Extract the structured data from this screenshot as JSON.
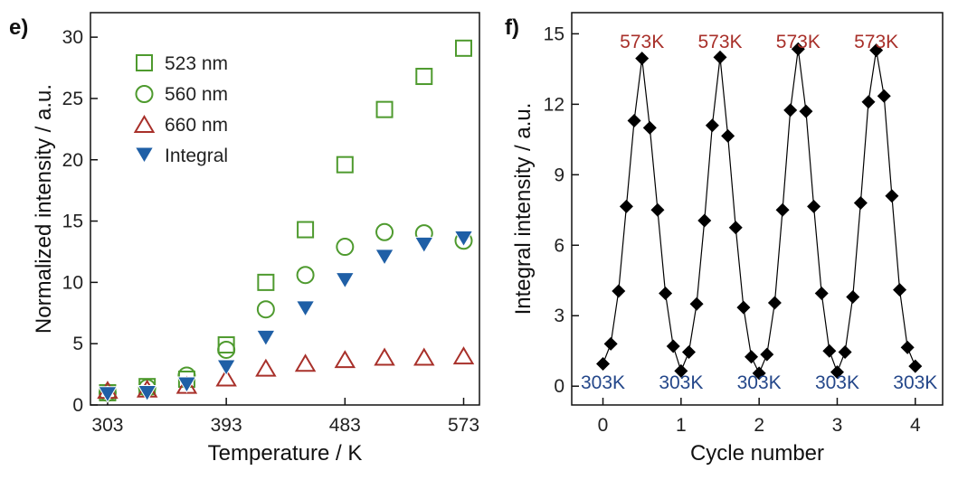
{
  "chart_data": [
    {
      "type": "scatter",
      "panel_label": "e)",
      "xlabel": "Temperature / K",
      "ylabel": "Normalized intensity / a.u.",
      "xlim": [
        290,
        585
      ],
      "ylim": [
        0,
        32
      ],
      "xticks": [
        303,
        393,
        483,
        573
      ],
      "yticks": [
        0,
        5,
        10,
        15,
        20,
        25,
        30
      ],
      "x": [
        303,
        333,
        363,
        393,
        423,
        453,
        483,
        513,
        543,
        573
      ],
      "legend_position": "top-left",
      "series": [
        {
          "name": "523 nm",
          "marker": "square",
          "color": "#4e9a2e",
          "values": [
            1.0,
            1.5,
            2.1,
            4.9,
            10.0,
            14.3,
            19.6,
            24.1,
            26.8,
            29.1
          ]
        },
        {
          "name": "560 nm",
          "marker": "circle",
          "color": "#4e9a2e",
          "values": [
            1.0,
            1.4,
            2.4,
            4.5,
            7.8,
            10.6,
            12.9,
            14.1,
            14.0,
            13.4
          ]
        },
        {
          "name": "660 nm",
          "marker": "triangle-up",
          "color": "#a8302a",
          "values": [
            1.1,
            1.2,
            1.5,
            2.1,
            2.9,
            3.3,
            3.6,
            3.8,
            3.8,
            3.9
          ]
        },
        {
          "name": "Integral",
          "marker": "triangle-down",
          "color": "#1f5fa6",
          "values": [
            0.9,
            1.0,
            1.7,
            3.1,
            5.5,
            7.9,
            10.2,
            12.1,
            13.1,
            13.6
          ]
        }
      ]
    },
    {
      "type": "line",
      "panel_label": "f)",
      "xlabel": "Cycle number",
      "ylabel": "Integral intensity / a.u.",
      "xlim": [
        -0.4,
        4.35
      ],
      "ylim": [
        -0.8,
        15.9
      ],
      "xticks": [
        0,
        1,
        2,
        3,
        4
      ],
      "yticks": [
        0,
        3,
        6,
        9,
        12,
        15
      ],
      "series": [
        {
          "name": "Integral intensity",
          "marker": "diamond",
          "color": "#000000",
          "x": [
            0.0,
            0.1,
            0.2,
            0.3,
            0.4,
            0.5,
            0.6,
            0.7,
            0.8,
            0.9,
            1.0,
            1.1,
            1.2,
            1.3,
            1.4,
            1.5,
            1.6,
            1.7,
            1.8,
            1.9,
            2.0,
            2.1,
            2.2,
            2.3,
            2.4,
            2.5,
            2.6,
            2.7,
            2.8,
            2.9,
            3.0,
            3.1,
            3.2,
            3.3,
            3.4,
            3.5,
            3.6,
            3.7,
            3.8,
            3.9,
            4.0
          ],
          "values": [
            0.95,
            1.8,
            4.05,
            7.65,
            11.3,
            13.95,
            11.0,
            7.5,
            3.95,
            1.7,
            0.65,
            1.45,
            3.5,
            7.05,
            11.1,
            14.0,
            10.65,
            6.75,
            3.35,
            1.25,
            0.55,
            1.35,
            3.55,
            7.5,
            11.75,
            14.35,
            11.7,
            7.65,
            3.95,
            1.5,
            0.6,
            1.45,
            3.8,
            7.8,
            12.1,
            14.3,
            12.35,
            8.1,
            4.1,
            1.65,
            0.85
          ]
        }
      ],
      "annotations": {
        "hot": [
          "573K",
          "573K",
          "573K",
          "573K"
        ],
        "hot_x": [
          0.5,
          1.5,
          2.5,
          3.5
        ],
        "cold": [
          "303K",
          "303K",
          "303K",
          "303K",
          "303K"
        ],
        "cold_x": [
          0,
          1,
          2,
          3,
          4
        ],
        "hot_color": "#a8302a",
        "cold_color": "#24478a"
      }
    }
  ]
}
